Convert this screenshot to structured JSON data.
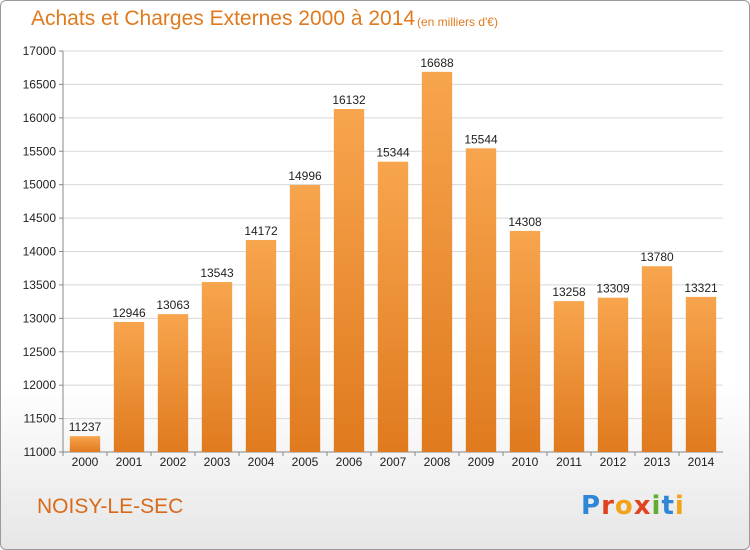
{
  "header": {
    "title": "Achats et Charges Externes 2000 à 2014",
    "subtitle": "(en milliers d'€)"
  },
  "footer": {
    "city": "NOISY-LE-SEC",
    "logo_text": "Proxiti"
  },
  "colors": {
    "accent": "#e07a1e",
    "bar_light": "#f7a54e",
    "bar_dark": "#e07a1e",
    "grid": "#d8d8d8"
  },
  "chart_data": {
    "type": "bar",
    "title": "Achats et Charges Externes 2000 à 2014",
    "subtitle": "(en milliers d'€)",
    "xlabel": "",
    "ylabel": "",
    "categories": [
      "2000",
      "2001",
      "2002",
      "2003",
      "2004",
      "2005",
      "2006",
      "2007",
      "2008",
      "2009",
      "2010",
      "2011",
      "2012",
      "2013",
      "2014"
    ],
    "values": [
      11237,
      12946,
      13063,
      13543,
      14172,
      14996,
      16132,
      15344,
      16688,
      15544,
      14308,
      13258,
      13309,
      13780,
      13321
    ],
    "ylim": [
      11000,
      17000
    ],
    "yticks": [
      11000,
      11500,
      12000,
      12500,
      13000,
      13500,
      14000,
      14500,
      15000,
      15500,
      16000,
      16500,
      17000
    ],
    "grid": true,
    "legend": "none"
  }
}
